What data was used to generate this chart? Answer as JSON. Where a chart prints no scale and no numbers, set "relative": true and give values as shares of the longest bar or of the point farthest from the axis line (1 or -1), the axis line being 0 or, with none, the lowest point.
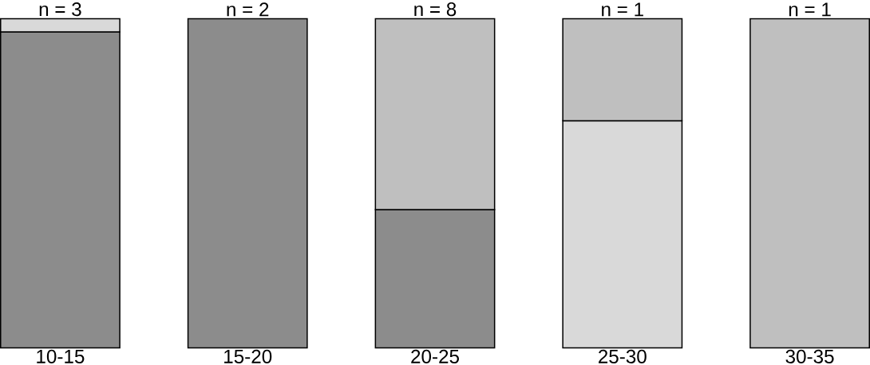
{
  "chart_data": {
    "type": "bar",
    "stacked": true,
    "relative": true,
    "categories": [
      "10-15",
      "15-20",
      "20-25",
      "25-30",
      "30-35"
    ],
    "series": [
      {
        "color": "#8c8c8c",
        "values": [
          0.96,
          1.0,
          0.42,
          null,
          null
        ]
      },
      {
        "color": "#d9d9d9",
        "values": [
          0.04,
          null,
          null,
          0.69,
          null
        ]
      },
      {
        "color": "#bfbfbf",
        "values": [
          null,
          null,
          0.58,
          0.31,
          1.0
        ]
      }
    ],
    "annotations": [
      {
        "text": "n = 3",
        "x": "10-15",
        "y": 1
      },
      {
        "text": "n = 2",
        "x": "15-20",
        "y": 1
      },
      {
        "text": "n = 8",
        "x": "20-25",
        "y": 1
      },
      {
        "text": "n = 1",
        "x": "25-30",
        "y": 1
      },
      {
        "text": "n = 1",
        "x": "30-35",
        "y": 1
      }
    ]
  }
}
